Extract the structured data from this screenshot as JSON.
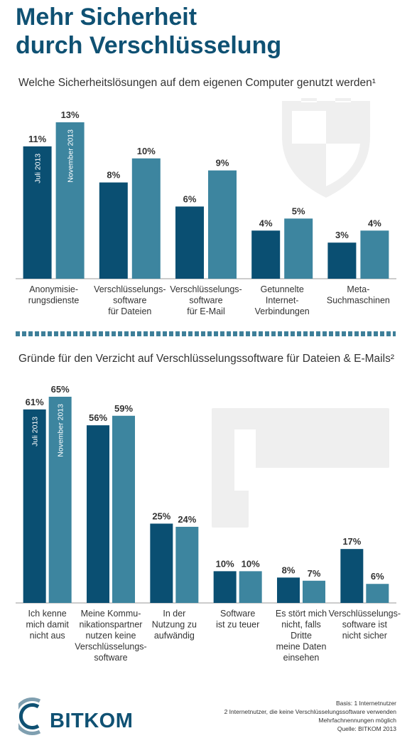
{
  "header": {
    "title_line1": "Mehr Sicherheit",
    "title_line2": "durch Verschlüsselung"
  },
  "colors": {
    "series_a": "#0a4f72",
    "series_b": "#3d859f",
    "text": "#333333",
    "watermark": "#efefef"
  },
  "chart_data": [
    {
      "type": "bar",
      "title": "Welche Sicherheitslösungen auf dem eigenen Computer genutzt werden¹",
      "categories": [
        "Anonymisie-\nrungsdienste",
        "Verschlüsselungs-\nsoftware\nfür Dateien",
        "Verschlüsselungs-\nsoftware\nfür E-Mail",
        "Getunnelte\nInternet-\nVerbindungen",
        "Meta-\nSuchmaschinen"
      ],
      "series": [
        {
          "name": "Juli 2013",
          "values": [
            11,
            8,
            6,
            4,
            3
          ]
        },
        {
          "name": "November 2013",
          "values": [
            13,
            10,
            9,
            5,
            4
          ]
        }
      ],
      "value_suffix": "%",
      "ylim": [
        0,
        13
      ],
      "grid": false,
      "legend": "rotated labels inside first category bars",
      "background_icon": "shield-icon"
    },
    {
      "type": "bar",
      "title": "Gründe für den Verzicht auf Verschlüsselungssoftware für Dateien & E-Mails²",
      "categories": [
        "Ich kenne\nmich damit\nnicht aus",
        "Meine Kommu-\nnikationspartner\nnutzen keine\nVerschlüsselungs-\nsoftware",
        "In der\nNutzung zu\naufwändig",
        "Software\nist zu teuer",
        "Es stört mich\nnicht, falls\nDritte\nmeine Daten\neinsehen",
        "Verschlüsselungs-\nsoftware ist\nnicht sicher"
      ],
      "series": [
        {
          "name": "Juli 2013",
          "values": [
            61,
            56,
            25,
            10,
            8,
            17
          ]
        },
        {
          "name": "November 2013",
          "values": [
            65,
            59,
            24,
            10,
            7,
            6
          ]
        }
      ],
      "value_suffix": "%",
      "ylim": [
        0,
        65
      ],
      "grid": false,
      "legend": "rotated labels inside first category bars",
      "background_icon": "hammer-icon"
    }
  ],
  "footnote": {
    "line1": "Basis: 1 Internetnutzer",
    "line2": "2 Internetnutzer, die keine Verschlüsselungssoftware verwenden",
    "line3": "Mehrfachnennungen möglich",
    "line4": "Quelle: BITKOM 2013"
  },
  "logo": {
    "text": "BITKOM",
    "icon": "bitkom-logo-icon"
  }
}
